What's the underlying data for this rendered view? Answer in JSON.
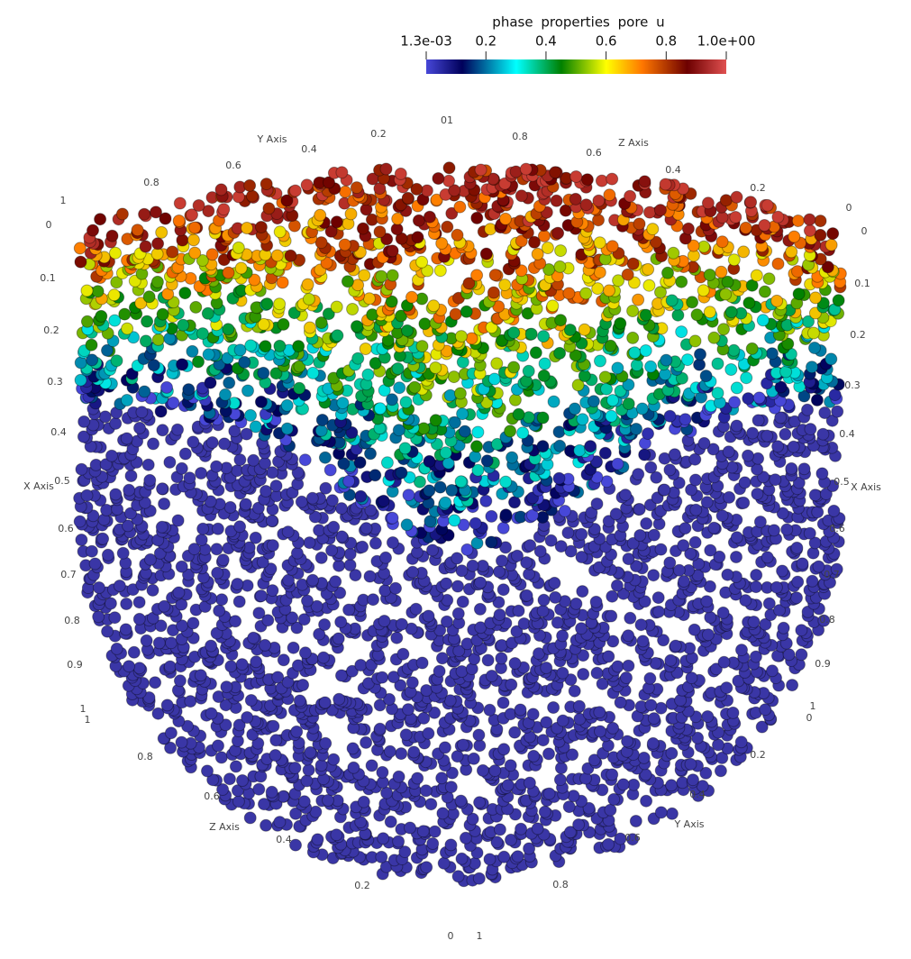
{
  "colorbar": {
    "title": "phase properties pore u",
    "range": [
      0.0013,
      1
    ],
    "ticks": [
      {
        "value": 0.0013,
        "label": "1.3e-03"
      },
      0.2,
      0.4,
      0.6,
      0.8,
      {
        "value": 1,
        "label": "1.0e+00"
      }
    ]
  },
  "axis_labels": [
    "01",
    "Y Axis",
    "0.4",
    "0.2",
    "0.6",
    "0.8",
    "1",
    "0",
    "0.8",
    "Z Axis",
    "0.6",
    "0.4",
    "0.2",
    "0",
    "0",
    "0.1",
    "0.2",
    "0.3",
    "0.4",
    "X Axis",
    "0.5",
    "0.6",
    "0.7",
    "0.8",
    "0.9",
    "1",
    "1",
    "0.1",
    "0.2",
    "0.3",
    "0.4",
    "0.5",
    "X Axis",
    "0.6",
    "0.7",
    "0.8",
    "0.9",
    "1",
    "0",
    "0.8",
    "0.6",
    "Z Axis",
    "0.4",
    "0.2",
    "0",
    "0.2",
    "0.4",
    "Y Axis",
    "0.6",
    "0.8",
    "1"
  ]
}
